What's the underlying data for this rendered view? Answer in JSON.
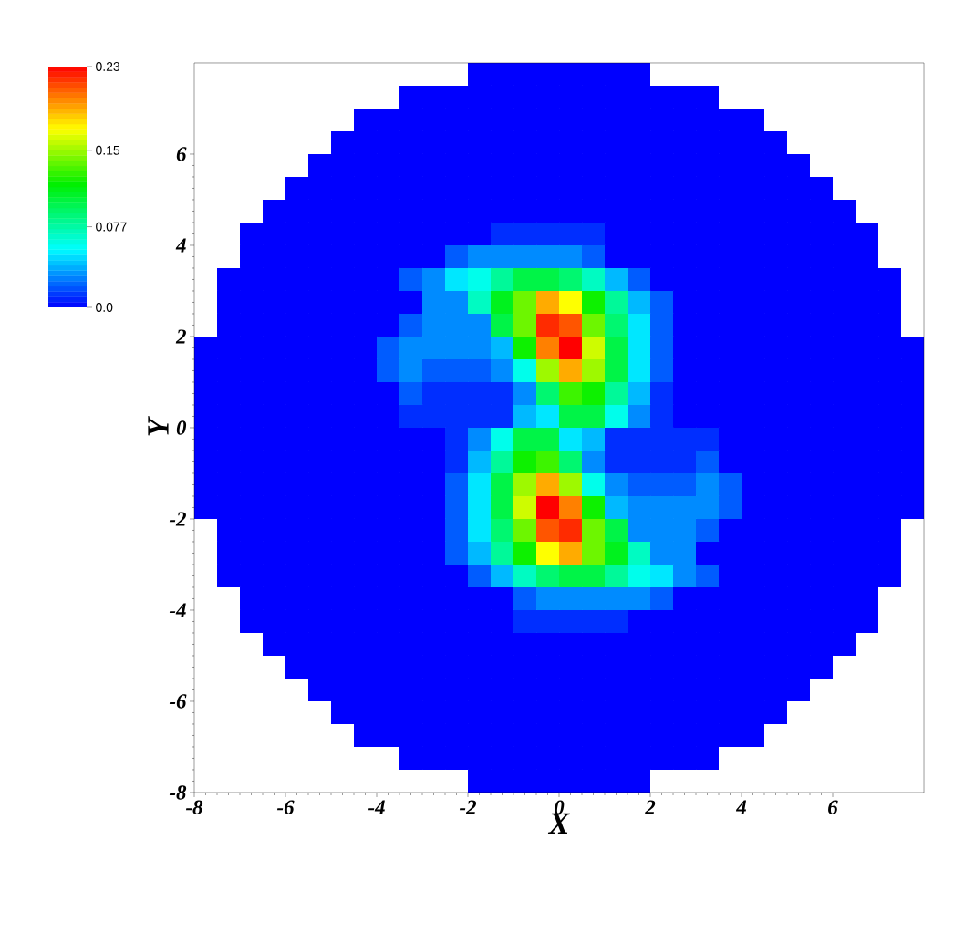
{
  "chart_data": {
    "type": "heatmap",
    "xlabel": "X",
    "ylabel": "Y",
    "xlim": [
      -8,
      8
    ],
    "ylim": [
      -8,
      8
    ],
    "xticks": [
      {
        "value": -8,
        "label": "-8"
      },
      {
        "value": -6,
        "label": "-6"
      },
      {
        "value": -4,
        "label": "-4"
      },
      {
        "value": -2,
        "label": "-2"
      },
      {
        "value": 0,
        "label": "0"
      },
      {
        "value": 2,
        "label": "2"
      },
      {
        "value": 4,
        "label": "4"
      },
      {
        "value": 6,
        "label": "6"
      }
    ],
    "yticks": [
      {
        "value": -8,
        "label": "-8"
      },
      {
        "value": -6,
        "label": "-6"
      },
      {
        "value": -4,
        "label": "-4"
      },
      {
        "value": -2,
        "label": "-2"
      },
      {
        "value": 0,
        "label": "0"
      },
      {
        "value": 2,
        "label": "2"
      },
      {
        "value": 4,
        "label": "4"
      },
      {
        "value": 6,
        "label": "6"
      }
    ],
    "clim": [
      0,
      0.23
    ],
    "cticks": [
      {
        "value": 0,
        "label": "0.0"
      },
      {
        "value": 0.077,
        "label": "0.077"
      },
      {
        "value": 0.15,
        "label": "0.15"
      },
      {
        "value": 0.23,
        "label": "0.23"
      }
    ],
    "cells": [
      [
        null,
        null,
        null,
        null,
        null,
        null,
        null,
        null,
        null,
        null,
        null,
        null,
        0,
        0,
        0,
        0,
        0,
        0,
        0,
        0,
        null,
        null,
        null,
        null,
        null,
        null,
        null,
        null,
        null,
        null,
        null,
        null
      ],
      [
        null,
        null,
        null,
        null,
        null,
        null,
        null,
        null,
        null,
        0,
        0,
        0,
        0,
        0,
        0,
        0,
        0,
        0,
        0,
        0,
        0,
        0,
        0,
        null,
        null,
        null,
        null,
        null,
        null,
        null,
        null,
        null
      ],
      [
        null,
        null,
        null,
        null,
        null,
        null,
        null,
        0,
        0,
        0,
        0,
        0,
        0,
        0,
        0,
        0,
        0,
        0,
        0,
        0,
        0,
        0,
        0,
        0,
        0,
        null,
        null,
        null,
        null,
        null,
        null,
        null
      ],
      [
        null,
        null,
        null,
        null,
        null,
        null,
        0,
        0,
        0,
        0,
        0,
        0,
        0,
        0,
        0,
        0,
        0,
        0,
        0,
        0,
        0,
        0,
        0,
        0,
        0,
        0,
        null,
        null,
        null,
        null,
        null,
        null
      ],
      [
        null,
        null,
        null,
        null,
        null,
        0,
        0,
        0,
        0,
        0,
        0,
        0,
        0,
        0,
        0,
        0,
        0,
        0,
        0,
        0,
        0,
        0,
        0,
        0,
        0,
        0,
        0,
        null,
        null,
        null,
        null,
        null
      ],
      [
        null,
        null,
        null,
        null,
        0,
        0,
        0,
        0,
        0,
        0,
        0,
        0,
        0,
        0,
        0,
        0,
        0,
        0,
        0,
        0,
        0,
        0,
        0,
        0,
        0,
        0,
        0,
        0,
        null,
        null,
        null,
        null
      ],
      [
        null,
        null,
        null,
        0,
        0,
        0,
        0,
        0,
        0,
        0,
        0,
        0,
        0,
        0,
        0,
        0,
        0,
        0,
        0,
        0,
        0,
        0,
        0,
        0,
        0,
        0,
        0,
        0,
        0,
        null,
        null,
        null
      ],
      [
        null,
        null,
        0,
        0,
        0,
        0,
        0,
        0,
        0,
        0,
        0,
        0,
        0,
        0.01,
        0.01,
        0.01,
        0.01,
        0.01,
        0,
        0,
        0,
        0,
        0,
        0,
        0,
        0,
        0,
        0,
        0,
        0,
        null,
        null
      ],
      [
        null,
        null,
        0,
        0,
        0,
        0,
        0,
        0,
        0,
        0,
        0,
        0.02,
        0.03,
        0.03,
        0.03,
        0.03,
        0.03,
        0.02,
        0,
        0,
        0,
        0,
        0,
        0,
        0,
        0,
        0,
        0,
        0,
        0,
        null,
        null
      ],
      [
        null,
        0,
        0,
        0,
        0,
        0,
        0,
        0,
        0,
        0.02,
        0.03,
        0.05,
        0.06,
        0.08,
        0.1,
        0.1,
        0.09,
        0.07,
        0.04,
        0.02,
        0,
        0,
        0,
        0,
        0,
        0,
        0,
        0,
        0,
        0,
        0,
        null
      ],
      [
        null,
        0,
        0,
        0,
        0,
        0,
        0,
        0,
        0,
        0,
        0.03,
        0.03,
        0.07,
        0.11,
        0.14,
        0.19,
        0.17,
        0.12,
        0.08,
        0.04,
        0.02,
        0,
        0,
        0,
        0,
        0,
        0,
        0,
        0,
        0,
        0,
        null
      ],
      [
        null,
        0,
        0,
        0,
        0,
        0,
        0,
        0,
        0,
        0.02,
        0.03,
        0.03,
        0.03,
        0.1,
        0.14,
        0.22,
        0.21,
        0.14,
        0.09,
        0.05,
        0.02,
        0,
        0,
        0,
        0,
        0,
        0,
        0,
        0,
        0,
        0,
        null
      ],
      [
        0,
        0,
        0,
        0,
        0,
        0,
        0,
        0,
        0.02,
        0.03,
        0.03,
        0.03,
        0.03,
        0.04,
        0.12,
        0.2,
        0.23,
        0.16,
        0.1,
        0.05,
        0.02,
        0,
        0,
        0,
        0,
        0,
        0,
        0,
        0,
        0,
        0,
        0
      ],
      [
        0,
        0,
        0,
        0,
        0,
        0,
        0,
        0,
        0.02,
        0.03,
        0.02,
        0.02,
        0.02,
        0.03,
        0.06,
        0.15,
        0.19,
        0.15,
        0.1,
        0.05,
        0.02,
        0,
        0,
        0,
        0,
        0,
        0,
        0,
        0,
        0,
        0,
        0
      ],
      [
        0,
        0,
        0,
        0,
        0,
        0,
        0,
        0,
        0,
        0.02,
        0.01,
        0.01,
        0.01,
        0.01,
        0.03,
        0.09,
        0.13,
        0.12,
        0.08,
        0.04,
        0.01,
        0,
        0,
        0,
        0,
        0,
        0,
        0,
        0,
        0,
        0,
        0
      ],
      [
        0,
        0,
        0,
        0,
        0,
        0,
        0,
        0,
        0,
        0.01,
        0.01,
        0.01,
        0.01,
        0.01,
        0.04,
        0.05,
        0.1,
        0.1,
        0.06,
        0.03,
        0.01,
        0,
        0,
        0,
        0,
        0,
        0,
        0,
        0,
        0,
        0,
        0
      ],
      [
        0,
        0,
        0,
        0,
        0,
        0,
        0,
        0,
        0,
        0,
        0,
        0.01,
        0.03,
        0.06,
        0.1,
        0.1,
        0.05,
        0.04,
        0.01,
        0.01,
        0.01,
        0.01,
        0.01,
        0,
        0,
        0,
        0,
        0,
        0,
        0,
        0,
        0
      ],
      [
        0,
        0,
        0,
        0,
        0,
        0,
        0,
        0,
        0,
        0,
        0,
        0.01,
        0.04,
        0.08,
        0.12,
        0.13,
        0.09,
        0.03,
        0.01,
        0.01,
        0.01,
        0.01,
        0.02,
        0,
        0,
        0,
        0,
        0,
        0,
        0,
        0,
        0
      ],
      [
        0,
        0,
        0,
        0,
        0,
        0,
        0,
        0,
        0,
        0,
        0,
        0.02,
        0.05,
        0.1,
        0.15,
        0.19,
        0.15,
        0.06,
        0.03,
        0.02,
        0.02,
        0.02,
        0.03,
        0.02,
        0,
        0,
        0,
        0,
        0,
        0,
        0,
        0
      ],
      [
        0,
        0,
        0,
        0,
        0,
        0,
        0,
        0,
        0,
        0,
        0,
        0.02,
        0.05,
        0.1,
        0.16,
        0.23,
        0.2,
        0.12,
        0.04,
        0.03,
        0.03,
        0.03,
        0.03,
        0.02,
        0,
        0,
        0,
        0,
        0,
        0,
        0,
        0
      ],
      [
        null,
        0,
        0,
        0,
        0,
        0,
        0,
        0,
        0,
        0,
        0,
        0.02,
        0.05,
        0.09,
        0.14,
        0.21,
        0.22,
        0.14,
        0.1,
        0.03,
        0.03,
        0.03,
        0.02,
        0,
        0,
        0,
        0,
        0,
        0,
        0,
        0,
        null
      ],
      [
        null,
        0,
        0,
        0,
        0,
        0,
        0,
        0,
        0,
        0,
        0,
        0.02,
        0.04,
        0.08,
        0.12,
        0.17,
        0.19,
        0.14,
        0.11,
        0.07,
        0.03,
        0.03,
        0,
        0,
        0,
        0,
        0,
        0,
        0,
        0,
        0,
        null
      ],
      [
        null,
        0,
        0,
        0,
        0,
        0,
        0,
        0,
        0,
        0,
        0,
        0,
        0.02,
        0.04,
        0.07,
        0.09,
        0.1,
        0.1,
        0.08,
        0.06,
        0.05,
        0.03,
        0.02,
        0,
        0,
        0,
        0,
        0,
        0,
        0,
        0,
        null
      ],
      [
        null,
        null,
        0,
        0,
        0,
        0,
        0,
        0,
        0,
        0,
        0,
        0,
        0,
        0,
        0.02,
        0.03,
        0.03,
        0.03,
        0.03,
        0.03,
        0.02,
        0,
        0,
        0,
        0,
        0,
        0,
        0,
        0,
        0,
        null,
        null
      ],
      [
        null,
        null,
        0,
        0,
        0,
        0,
        0,
        0,
        0,
        0,
        0,
        0,
        0,
        0,
        0.01,
        0.01,
        0.01,
        0.01,
        0.01,
        0,
        0,
        0,
        0,
        0,
        0,
        0,
        0,
        0,
        0,
        0,
        null,
        null
      ],
      [
        null,
        null,
        null,
        0,
        0,
        0,
        0,
        0,
        0,
        0,
        0,
        0,
        0,
        0,
        0,
        0,
        0,
        0,
        0,
        0,
        0,
        0,
        0,
        0,
        0,
        0,
        0,
        0,
        0,
        null,
        null,
        null
      ],
      [
        null,
        null,
        null,
        null,
        0,
        0,
        0,
        0,
        0,
        0,
        0,
        0,
        0,
        0,
        0,
        0,
        0,
        0,
        0,
        0,
        0,
        0,
        0,
        0,
        0,
        0,
        0,
        0,
        null,
        null,
        null,
        null
      ],
      [
        null,
        null,
        null,
        null,
        null,
        0,
        0,
        0,
        0,
        0,
        0,
        0,
        0,
        0,
        0,
        0,
        0,
        0,
        0,
        0,
        0,
        0,
        0,
        0,
        0,
        0,
        0,
        null,
        null,
        null,
        null,
        null
      ],
      [
        null,
        null,
        null,
        null,
        null,
        null,
        0,
        0,
        0,
        0,
        0,
        0,
        0,
        0,
        0,
        0,
        0,
        0,
        0,
        0,
        0,
        0,
        0,
        0,
        0,
        0,
        null,
        null,
        null,
        null,
        null,
        null
      ],
      [
        null,
        null,
        null,
        null,
        null,
        null,
        null,
        0,
        0,
        0,
        0,
        0,
        0,
        0,
        0,
        0,
        0,
        0,
        0,
        0,
        0,
        0,
        0,
        0,
        0,
        null,
        null,
        null,
        null,
        null,
        null,
        null
      ],
      [
        null,
        null,
        null,
        null,
        null,
        null,
        null,
        null,
        null,
        0,
        0,
        0,
        0,
        0,
        0,
        0,
        0,
        0,
        0,
        0,
        0,
        0,
        0,
        null,
        null,
        null,
        null,
        null,
        null,
        null,
        null,
        null
      ],
      [
        null,
        null,
        null,
        null,
        null,
        null,
        null,
        null,
        null,
        null,
        null,
        null,
        0,
        0,
        0,
        0,
        0,
        0,
        0,
        0,
        null,
        null,
        null,
        null,
        null,
        null,
        null,
        null,
        null,
        null,
        null,
        null
      ]
    ]
  }
}
